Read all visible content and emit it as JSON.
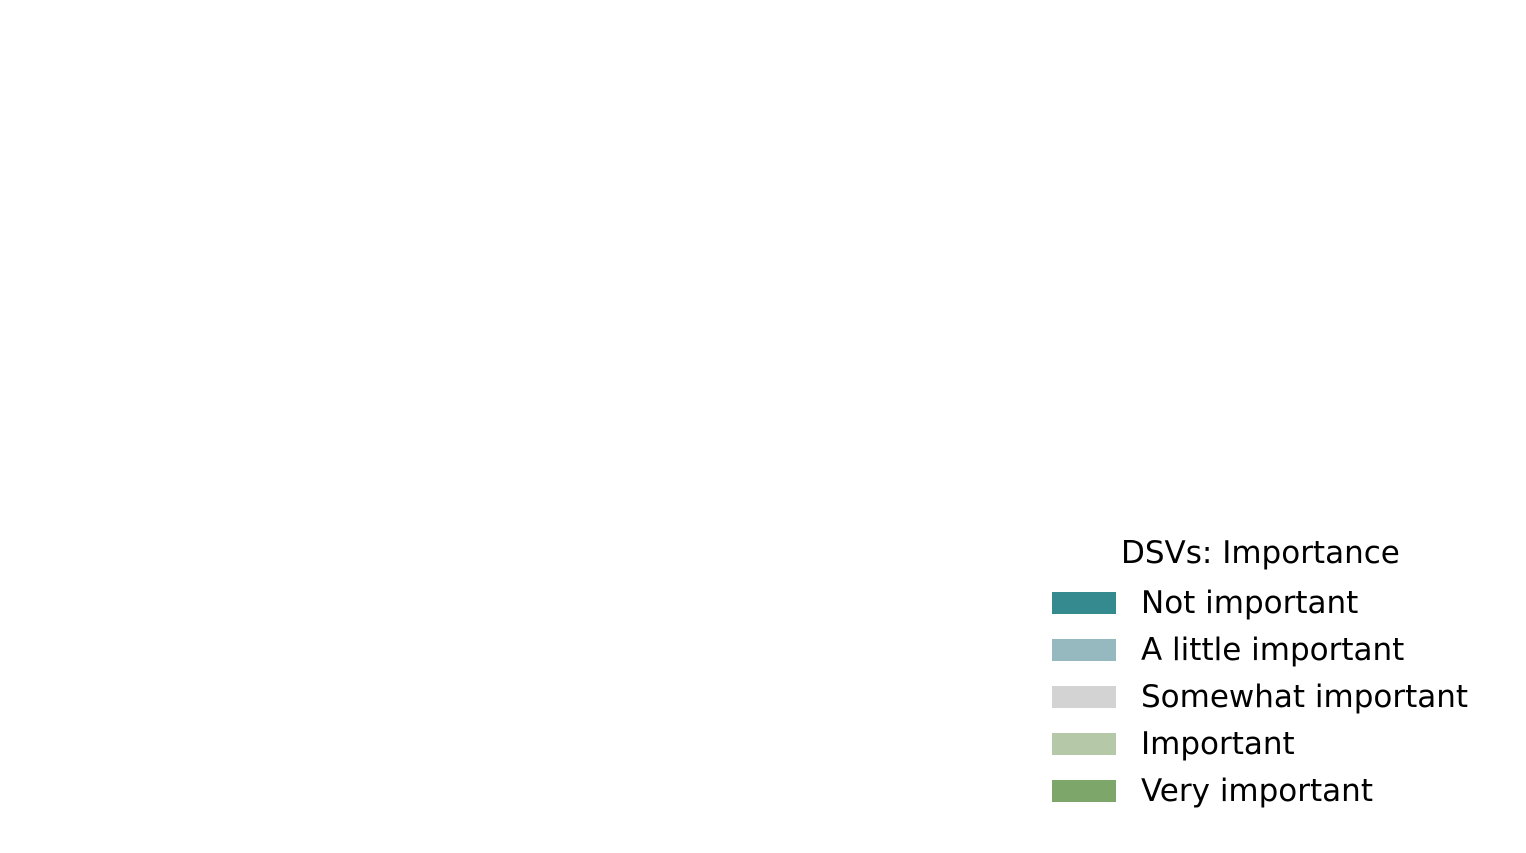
{
  "chart_data": {
    "type": "bar",
    "legend": {
      "title": "DSVs: Importance",
      "placement": "lower-right",
      "entries": [
        {
          "label": "Not important",
          "color": "#358a8f"
        },
        {
          "label": "A little important",
          "color": "#95b9be"
        },
        {
          "label": "Somewhat important",
          "color": "#d3d3d3"
        },
        {
          "label": "Important",
          "color": "#b5c9a8"
        },
        {
          "label": "Very important",
          "color": "#7da66a"
        }
      ]
    }
  }
}
